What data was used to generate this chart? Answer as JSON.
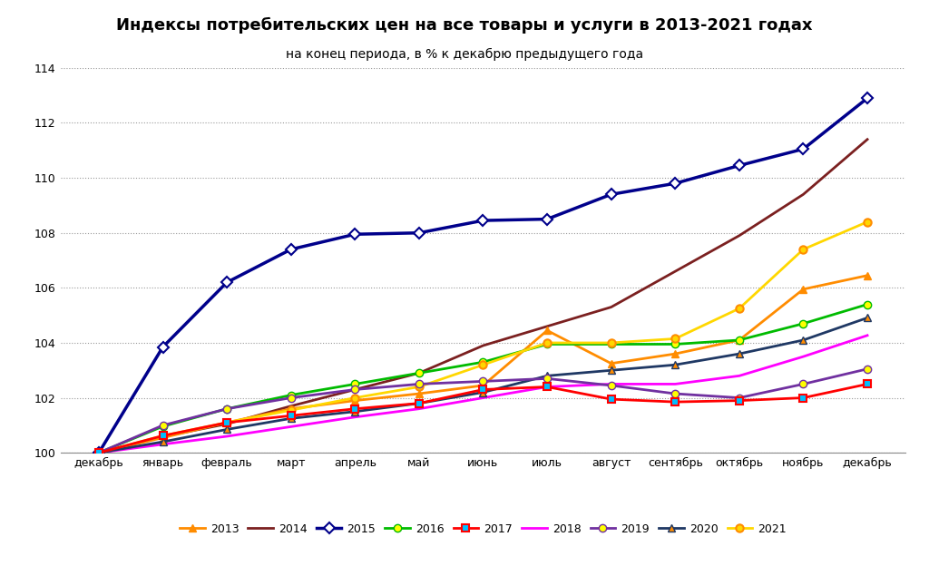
{
  "title": "Индексы потребительских цен на все товары и услуги в 2013-2021 годах",
  "subtitle": "на конец периода, в % к декабрю предыдущего года",
  "months": [
    "декабрь",
    "январь",
    "февраль",
    "март",
    "апрель",
    "май",
    "июнь",
    "июль",
    "август",
    "сентябрь",
    "октябрь",
    "ноябрь",
    "декабрь"
  ],
  "series": {
    "2013": [
      100.0,
      100.55,
      101.1,
      101.6,
      101.9,
      102.15,
      102.45,
      104.45,
      103.25,
      103.6,
      104.1,
      105.95,
      106.45
    ],
    "2014": [
      100.0,
      100.59,
      101.05,
      101.7,
      102.3,
      102.9,
      103.9,
      104.6,
      105.3,
      106.6,
      107.9,
      109.4,
      111.4
    ],
    "2015": [
      100.0,
      103.85,
      106.2,
      107.4,
      107.95,
      108.0,
      108.45,
      108.5,
      109.4,
      109.8,
      110.45,
      111.05,
      112.9
    ],
    "2016": [
      100.0,
      100.96,
      101.6,
      102.1,
      102.5,
      102.9,
      103.3,
      103.95,
      103.95,
      103.95,
      104.1,
      104.7,
      105.4
    ],
    "2017": [
      100.0,
      100.62,
      101.1,
      101.35,
      101.6,
      101.8,
      102.3,
      102.4,
      101.95,
      101.85,
      101.9,
      102.0,
      102.5
    ],
    "2018": [
      100.0,
      100.31,
      100.6,
      100.95,
      101.3,
      101.6,
      102.0,
      102.4,
      102.5,
      102.5,
      102.8,
      103.5,
      104.27
    ],
    "2019": [
      100.0,
      101.0,
      101.6,
      102.0,
      102.3,
      102.5,
      102.6,
      102.7,
      102.45,
      102.15,
      102.0,
      102.5,
      103.05
    ],
    "2020": [
      100.0,
      100.4,
      100.85,
      101.25,
      101.5,
      101.8,
      102.2,
      102.8,
      103.0,
      103.2,
      103.6,
      104.1,
      104.91
    ],
    "2021": [
      100.0,
      100.62,
      101.1,
      101.55,
      102.0,
      102.4,
      103.2,
      104.0,
      104.0,
      104.15,
      105.25,
      107.4,
      108.4
    ]
  },
  "colors": {
    "2013": "#FF8C00",
    "2014": "#7B2020",
    "2015": "#00008B",
    "2016": "#00BB00",
    "2017": "#FF0000",
    "2018": "#FF00FF",
    "2019": "#7030A0",
    "2020": "#1F3864",
    "2021": "#FFD700"
  },
  "ylim": [
    100,
    114
  ],
  "yticks": [
    100,
    102,
    104,
    106,
    108,
    110,
    112,
    114
  ],
  "background_color": "#FFFFFF",
  "grid_color": "#999999",
  "title_fontsize": 13,
  "subtitle_fontsize": 10,
  "legend_fontsize": 9,
  "tick_fontsize": 9
}
